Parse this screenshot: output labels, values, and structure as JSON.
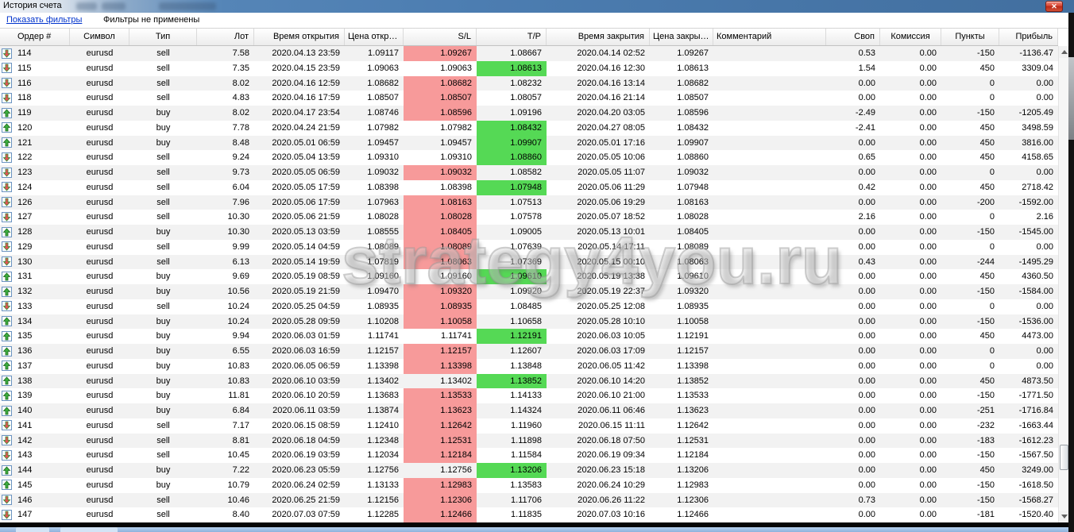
{
  "window": {
    "title": "История счета"
  },
  "icons": {
    "close": "✕"
  },
  "filter_bar": {
    "show_filters_link": "Показать фильтры",
    "status": "Фильтры не применены"
  },
  "colors": {
    "sl_hit_bg": "#f79a9a",
    "tp_hit_bg": "#55d955",
    "buy_arrow": "#3fae3f",
    "sell_arrow": "#e25555",
    "titlebar_blue": "#4c7db1",
    "link_blue": "#0033cc"
  },
  "watermark": {
    "text": "strategy4you.ru"
  },
  "table": {
    "columns": {
      "order": "Ордер #",
      "symbol": "Символ",
      "type": "Тип",
      "lot": "Лот",
      "open_time": "Время открытия",
      "open_price": "Цена откр…",
      "sl": "S/L",
      "tp": "T/P",
      "close_time": "Время закрытия",
      "close_price": "Цена закры…",
      "comment": "Комментарий",
      "swap": "Своп",
      "commission": "Комиссия",
      "points": "Пункты",
      "profit": "Прибыль"
    },
    "rows": [
      {
        "o": "114",
        "s": "eurusd",
        "t": "sell",
        "l": "7.58",
        "ot": "2020.04.13 23:59",
        "op": "1.09117",
        "sl": "1.09267",
        "slh": true,
        "tp": "1.08667",
        "tph": false,
        "ct": "2020.04.14 02:52",
        "cp": "1.09267",
        "cm": "",
        "sw": "0.53",
        "co": "0.00",
        "pt": "-150",
        "pr": "-1136.47"
      },
      {
        "o": "115",
        "s": "eurusd",
        "t": "sell",
        "l": "7.35",
        "ot": "2020.04.15 23:59",
        "op": "1.09063",
        "sl": "1.09063",
        "slh": false,
        "tp": "1.08613",
        "tph": true,
        "ct": "2020.04.16 12:30",
        "cp": "1.08613",
        "cm": "",
        "sw": "1.54",
        "co": "0.00",
        "pt": "450",
        "pr": "3309.04"
      },
      {
        "o": "116",
        "s": "eurusd",
        "t": "sell",
        "l": "8.02",
        "ot": "2020.04.16 12:59",
        "op": "1.08682",
        "sl": "1.08682",
        "slh": true,
        "tp": "1.08232",
        "tph": false,
        "ct": "2020.04.16 13:14",
        "cp": "1.08682",
        "cm": "",
        "sw": "0.00",
        "co": "0.00",
        "pt": "0",
        "pr": "0.00"
      },
      {
        "o": "118",
        "s": "eurusd",
        "t": "sell",
        "l": "4.83",
        "ot": "2020.04.16 17:59",
        "op": "1.08507",
        "sl": "1.08507",
        "slh": true,
        "tp": "1.08057",
        "tph": false,
        "ct": "2020.04.16 21:14",
        "cp": "1.08507",
        "cm": "",
        "sw": "0.00",
        "co": "0.00",
        "pt": "0",
        "pr": "0.00"
      },
      {
        "o": "119",
        "s": "eurusd",
        "t": "buy",
        "l": "8.02",
        "ot": "2020.04.17 23:54",
        "op": "1.08746",
        "sl": "1.08596",
        "slh": true,
        "tp": "1.09196",
        "tph": false,
        "ct": "2020.04.20 03:05",
        "cp": "1.08596",
        "cm": "",
        "sw": "-2.49",
        "co": "0.00",
        "pt": "-150",
        "pr": "-1205.49"
      },
      {
        "o": "120",
        "s": "eurusd",
        "t": "buy",
        "l": "7.78",
        "ot": "2020.04.24 21:59",
        "op": "1.07982",
        "sl": "1.07982",
        "slh": false,
        "tp": "1.08432",
        "tph": true,
        "ct": "2020.04.27 08:05",
        "cp": "1.08432",
        "cm": "",
        "sw": "-2.41",
        "co": "0.00",
        "pt": "450",
        "pr": "3498.59"
      },
      {
        "o": "121",
        "s": "eurusd",
        "t": "buy",
        "l": "8.48",
        "ot": "2020.05.01 06:59",
        "op": "1.09457",
        "sl": "1.09457",
        "slh": false,
        "tp": "1.09907",
        "tph": true,
        "ct": "2020.05.01 17:16",
        "cp": "1.09907",
        "cm": "",
        "sw": "0.00",
        "co": "0.00",
        "pt": "450",
        "pr": "3816.00"
      },
      {
        "o": "122",
        "s": "eurusd",
        "t": "sell",
        "l": "9.24",
        "ot": "2020.05.04 13:59",
        "op": "1.09310",
        "sl": "1.09310",
        "slh": false,
        "tp": "1.08860",
        "tph": true,
        "ct": "2020.05.05 10:06",
        "cp": "1.08860",
        "cm": "",
        "sw": "0.65",
        "co": "0.00",
        "pt": "450",
        "pr": "4158.65"
      },
      {
        "o": "123",
        "s": "eurusd",
        "t": "sell",
        "l": "9.73",
        "ot": "2020.05.05 06:59",
        "op": "1.09032",
        "sl": "1.09032",
        "slh": true,
        "tp": "1.08582",
        "tph": false,
        "ct": "2020.05.05 11:07",
        "cp": "1.09032",
        "cm": "",
        "sw": "0.00",
        "co": "0.00",
        "pt": "0",
        "pr": "0.00"
      },
      {
        "o": "124",
        "s": "eurusd",
        "t": "sell",
        "l": "6.04",
        "ot": "2020.05.05 17:59",
        "op": "1.08398",
        "sl": "1.08398",
        "slh": false,
        "tp": "1.07948",
        "tph": true,
        "ct": "2020.05.06 11:29",
        "cp": "1.07948",
        "cm": "",
        "sw": "0.42",
        "co": "0.00",
        "pt": "450",
        "pr": "2718.42"
      },
      {
        "o": "126",
        "s": "eurusd",
        "t": "sell",
        "l": "7.96",
        "ot": "2020.05.06 17:59",
        "op": "1.07963",
        "sl": "1.08163",
        "slh": true,
        "tp": "1.07513",
        "tph": false,
        "ct": "2020.05.06 19:29",
        "cp": "1.08163",
        "cm": "",
        "sw": "0.00",
        "co": "0.00",
        "pt": "-200",
        "pr": "-1592.00"
      },
      {
        "o": "127",
        "s": "eurusd",
        "t": "sell",
        "l": "10.30",
        "ot": "2020.05.06 21:59",
        "op": "1.08028",
        "sl": "1.08028",
        "slh": true,
        "tp": "1.07578",
        "tph": false,
        "ct": "2020.05.07 18:52",
        "cp": "1.08028",
        "cm": "",
        "sw": "2.16",
        "co": "0.00",
        "pt": "0",
        "pr": "2.16"
      },
      {
        "o": "128",
        "s": "eurusd",
        "t": "buy",
        "l": "10.30",
        "ot": "2020.05.13 03:59",
        "op": "1.08555",
        "sl": "1.08405",
        "slh": true,
        "tp": "1.09005",
        "tph": false,
        "ct": "2020.05.13 10:01",
        "cp": "1.08405",
        "cm": "",
        "sw": "0.00",
        "co": "0.00",
        "pt": "-150",
        "pr": "-1545.00"
      },
      {
        "o": "129",
        "s": "eurusd",
        "t": "sell",
        "l": "9.99",
        "ot": "2020.05.14 04:59",
        "op": "1.08089",
        "sl": "1.08089",
        "slh": true,
        "tp": "1.07639",
        "tph": false,
        "ct": "2020.05.14 17:11",
        "cp": "1.08089",
        "cm": "",
        "sw": "0.00",
        "co": "0.00",
        "pt": "0",
        "pr": "0.00"
      },
      {
        "o": "130",
        "s": "eurusd",
        "t": "sell",
        "l": "6.13",
        "ot": "2020.05.14 19:59",
        "op": "1.07819",
        "sl": "1.08063",
        "slh": true,
        "tp": "1.07369",
        "tph": false,
        "ct": "2020.05.15 00:10",
        "cp": "1.08063",
        "cm": "",
        "sw": "0.43",
        "co": "0.00",
        "pt": "-244",
        "pr": "-1495.29"
      },
      {
        "o": "131",
        "s": "eurusd",
        "t": "buy",
        "l": "9.69",
        "ot": "2020.05.19 08:59",
        "op": "1.09160",
        "sl": "1.09160",
        "slh": false,
        "tp": "1.09610",
        "tph": true,
        "ct": "2020.05.19 13:38",
        "cp": "1.09610",
        "cm": "",
        "sw": "0.00",
        "co": "0.00",
        "pt": "450",
        "pr": "4360.50"
      },
      {
        "o": "132",
        "s": "eurusd",
        "t": "buy",
        "l": "10.56",
        "ot": "2020.05.19 21:59",
        "op": "1.09470",
        "sl": "1.09320",
        "slh": true,
        "tp": "1.09920",
        "tph": false,
        "ct": "2020.05.19 22:37",
        "cp": "1.09320",
        "cm": "",
        "sw": "0.00",
        "co": "0.00",
        "pt": "-150",
        "pr": "-1584.00"
      },
      {
        "o": "133",
        "s": "eurusd",
        "t": "sell",
        "l": "10.24",
        "ot": "2020.05.25 04:59",
        "op": "1.08935",
        "sl": "1.08935",
        "slh": true,
        "tp": "1.08485",
        "tph": false,
        "ct": "2020.05.25 12:08",
        "cp": "1.08935",
        "cm": "",
        "sw": "0.00",
        "co": "0.00",
        "pt": "0",
        "pr": "0.00"
      },
      {
        "o": "134",
        "s": "eurusd",
        "t": "buy",
        "l": "10.24",
        "ot": "2020.05.28 09:59",
        "op": "1.10208",
        "sl": "1.10058",
        "slh": true,
        "tp": "1.10658",
        "tph": false,
        "ct": "2020.05.28 10:10",
        "cp": "1.10058",
        "cm": "",
        "sw": "0.00",
        "co": "0.00",
        "pt": "-150",
        "pr": "-1536.00"
      },
      {
        "o": "135",
        "s": "eurusd",
        "t": "buy",
        "l": "9.94",
        "ot": "2020.06.03 01:59",
        "op": "1.11741",
        "sl": "1.11741",
        "slh": false,
        "tp": "1.12191",
        "tph": true,
        "ct": "2020.06.03 10:05",
        "cp": "1.12191",
        "cm": "",
        "sw": "0.00",
        "co": "0.00",
        "pt": "450",
        "pr": "4473.00"
      },
      {
        "o": "136",
        "s": "eurusd",
        "t": "buy",
        "l": "6.55",
        "ot": "2020.06.03 16:59",
        "op": "1.12157",
        "sl": "1.12157",
        "slh": true,
        "tp": "1.12607",
        "tph": false,
        "ct": "2020.06.03 17:09",
        "cp": "1.12157",
        "cm": "",
        "sw": "0.00",
        "co": "0.00",
        "pt": "0",
        "pr": "0.00"
      },
      {
        "o": "137",
        "s": "eurusd",
        "t": "buy",
        "l": "10.83",
        "ot": "2020.06.05 06:59",
        "op": "1.13398",
        "sl": "1.13398",
        "slh": true,
        "tp": "1.13848",
        "tph": false,
        "ct": "2020.06.05 11:42",
        "cp": "1.13398",
        "cm": "",
        "sw": "0.00",
        "co": "0.00",
        "pt": "0",
        "pr": "0.00"
      },
      {
        "o": "138",
        "s": "eurusd",
        "t": "buy",
        "l": "10.83",
        "ot": "2020.06.10 03:59",
        "op": "1.13402",
        "sl": "1.13402",
        "slh": false,
        "tp": "1.13852",
        "tph": true,
        "ct": "2020.06.10 14:20",
        "cp": "1.13852",
        "cm": "",
        "sw": "0.00",
        "co": "0.00",
        "pt": "450",
        "pr": "4873.50"
      },
      {
        "o": "139",
        "s": "eurusd",
        "t": "buy",
        "l": "11.81",
        "ot": "2020.06.10 20:59",
        "op": "1.13683",
        "sl": "1.13533",
        "slh": true,
        "tp": "1.14133",
        "tph": false,
        "ct": "2020.06.10 21:00",
        "cp": "1.13533",
        "cm": "",
        "sw": "0.00",
        "co": "0.00",
        "pt": "-150",
        "pr": "-1771.50"
      },
      {
        "o": "140",
        "s": "eurusd",
        "t": "buy",
        "l": "6.84",
        "ot": "2020.06.11 03:59",
        "op": "1.13874",
        "sl": "1.13623",
        "slh": true,
        "tp": "1.14324",
        "tph": false,
        "ct": "2020.06.11 06:46",
        "cp": "1.13623",
        "cm": "",
        "sw": "0.00",
        "co": "0.00",
        "pt": "-251",
        "pr": "-1716.84"
      },
      {
        "o": "141",
        "s": "eurusd",
        "t": "sell",
        "l": "7.17",
        "ot": "2020.06.15 08:59",
        "op": "1.12410",
        "sl": "1.12642",
        "slh": true,
        "tp": "1.11960",
        "tph": false,
        "ct": "2020.06.15 11:11",
        "cp": "1.12642",
        "cm": "",
        "sw": "0.00",
        "co": "0.00",
        "pt": "-232",
        "pr": "-1663.44"
      },
      {
        "o": "142",
        "s": "eurusd",
        "t": "sell",
        "l": "8.81",
        "ot": "2020.06.18 04:59",
        "op": "1.12348",
        "sl": "1.12531",
        "slh": true,
        "tp": "1.11898",
        "tph": false,
        "ct": "2020.06.18 07:50",
        "cp": "1.12531",
        "cm": "",
        "sw": "0.00",
        "co": "0.00",
        "pt": "-183",
        "pr": "-1612.23"
      },
      {
        "o": "143",
        "s": "eurusd",
        "t": "sell",
        "l": "10.45",
        "ot": "2020.06.19 03:59",
        "op": "1.12034",
        "sl": "1.12184",
        "slh": true,
        "tp": "1.11584",
        "tph": false,
        "ct": "2020.06.19 09:34",
        "cp": "1.12184",
        "cm": "",
        "sw": "0.00",
        "co": "0.00",
        "pt": "-150",
        "pr": "-1567.50"
      },
      {
        "o": "144",
        "s": "eurusd",
        "t": "buy",
        "l": "7.22",
        "ot": "2020.06.23 05:59",
        "op": "1.12756",
        "sl": "1.12756",
        "slh": false,
        "tp": "1.13206",
        "tph": true,
        "ct": "2020.06.23 15:18",
        "cp": "1.13206",
        "cm": "",
        "sw": "0.00",
        "co": "0.00",
        "pt": "450",
        "pr": "3249.00"
      },
      {
        "o": "145",
        "s": "eurusd",
        "t": "buy",
        "l": "10.79",
        "ot": "2020.06.24 02:59",
        "op": "1.13133",
        "sl": "1.12983",
        "slh": true,
        "tp": "1.13583",
        "tph": false,
        "ct": "2020.06.24 10:29",
        "cp": "1.12983",
        "cm": "",
        "sw": "0.00",
        "co": "0.00",
        "pt": "-150",
        "pr": "-1618.50"
      },
      {
        "o": "146",
        "s": "eurusd",
        "t": "sell",
        "l": "10.46",
        "ot": "2020.06.25 21:59",
        "op": "1.12156",
        "sl": "1.12306",
        "slh": true,
        "tp": "1.11706",
        "tph": false,
        "ct": "2020.06.26 11:22",
        "cp": "1.12306",
        "cm": "",
        "sw": "0.73",
        "co": "0.00",
        "pt": "-150",
        "pr": "-1568.27"
      },
      {
        "o": "147",
        "s": "eurusd",
        "t": "sell",
        "l": "8.40",
        "ot": "2020.07.03 07:59",
        "op": "1.12285",
        "sl": "1.12466",
        "slh": true,
        "tp": "1.11835",
        "tph": false,
        "ct": "2020.07.03 10:16",
        "cp": "1.12466",
        "cm": "",
        "sw": "0.00",
        "co": "0.00",
        "pt": "-181",
        "pr": "-1520.40"
      }
    ]
  }
}
